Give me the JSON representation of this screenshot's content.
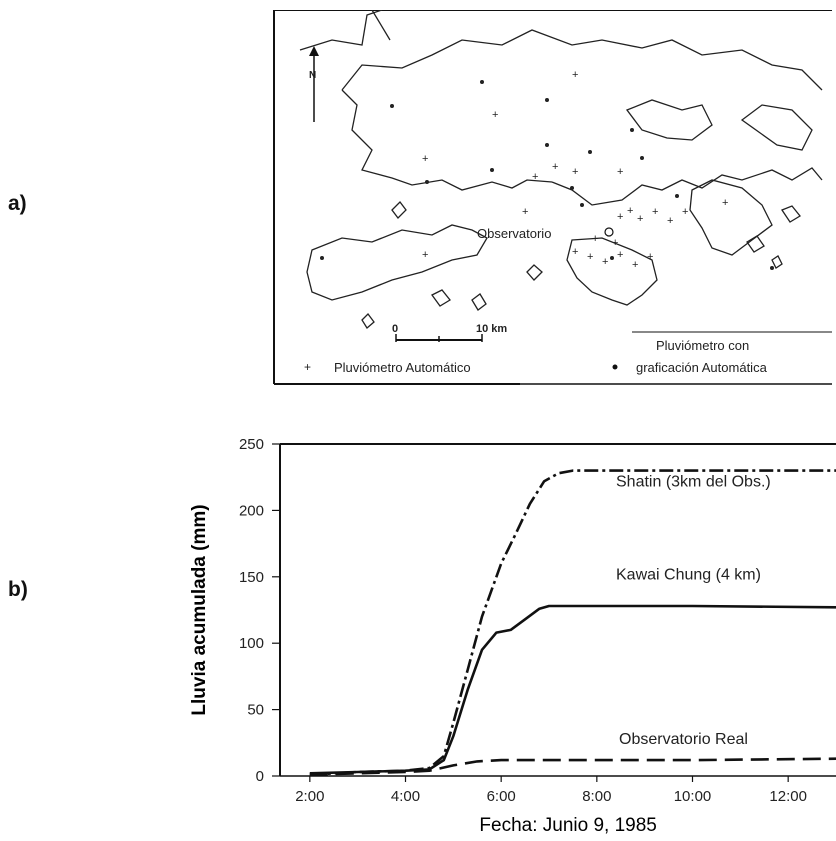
{
  "panels": {
    "a_label": "a)",
    "b_label": "b)"
  },
  "map": {
    "north_label": "N",
    "observatory_label": "Observatorio",
    "scale_start": "0",
    "scale_end": "10 km",
    "legend_auto_gauge": "Pluviómetro Automático",
    "legend_recording_gauge_line1": "Pluviómetro con",
    "legend_recording_gauge_line2": "graficación Automática"
  },
  "chart_data": {
    "type": "line",
    "xlabel": "Fecha: Junio 9, 1985",
    "ylabel": "Lluvia acumulada (mm)",
    "x_unit": "hours",
    "xlim": [
      1,
      13
    ],
    "ylim": [
      0,
      250
    ],
    "x_ticks": [
      {
        "value": 2,
        "label": "2:00"
      },
      {
        "value": 4,
        "label": "4:00"
      },
      {
        "value": 6,
        "label": "6:00"
      },
      {
        "value": 8,
        "label": "8:00"
      },
      {
        "value": 10,
        "label": "10:00"
      },
      {
        "value": 12,
        "label": "12:00"
      }
    ],
    "y_ticks": [
      0,
      50,
      100,
      150,
      200,
      250
    ],
    "series": [
      {
        "name": "Shatin (3km del Obs.)",
        "style": "dash-dot",
        "x": [
          2.0,
          3.0,
          4.0,
          4.5,
          4.8,
          5.0,
          5.3,
          5.6,
          6.0,
          6.3,
          6.6,
          6.9,
          7.2,
          7.5,
          8.0,
          10.0,
          13.0
        ],
        "y": [
          1,
          3,
          4,
          6,
          15,
          40,
          80,
          120,
          160,
          182,
          205,
          222,
          228,
          230,
          230,
          230,
          230
        ]
      },
      {
        "name": "Kawai Chung (4 km)",
        "style": "solid",
        "x": [
          2.0,
          3.0,
          4.0,
          4.5,
          4.8,
          5.0,
          5.3,
          5.6,
          5.9,
          6.2,
          6.5,
          6.8,
          7.0,
          8.0,
          10.0,
          13.0
        ],
        "y": [
          2,
          3,
          4,
          5,
          12,
          30,
          65,
          95,
          108,
          110,
          118,
          126,
          128,
          128,
          128,
          127
        ]
      },
      {
        "name": "Observatorio Real",
        "style": "dashed",
        "x": [
          2.0,
          3.0,
          4.0,
          4.5,
          5.0,
          5.5,
          6.0,
          8.0,
          10.0,
          13.0
        ],
        "y": [
          1,
          2,
          3,
          4,
          8,
          11,
          12,
          12,
          12,
          13
        ]
      }
    ]
  },
  "colors": {
    "ink": "#111111",
    "background": "#ffffff"
  }
}
